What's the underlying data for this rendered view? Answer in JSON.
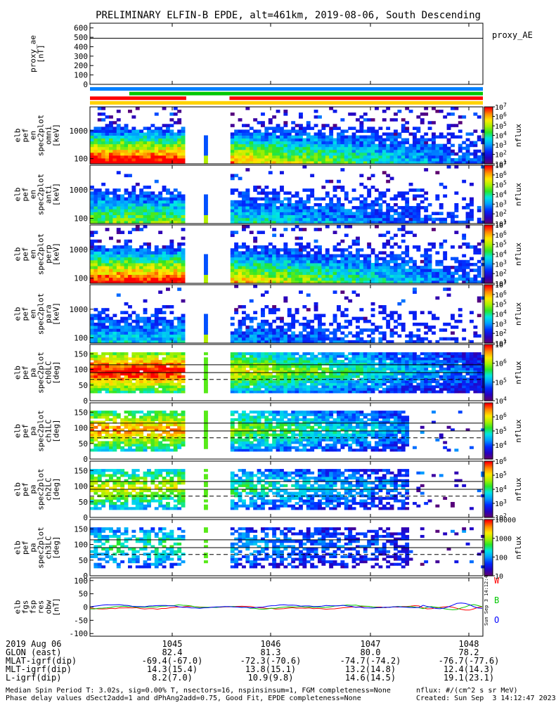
{
  "title": "PRELIMINARY ELFIN-B EPDE, alt=461km, 2019-08-06, South Descending",
  "footer": {
    "date_label": "2019 Aug 06",
    "rows": [
      {
        "label": "GLON (east)",
        "values": [
          "82.4",
          "81.3",
          "80.0",
          "78.2"
        ]
      },
      {
        "label": "MLAT-igrf(dip)",
        "values": [
          "-69.4(-67.0)",
          "-72.3(-70.6)",
          "-74.7(-74.2)",
          "-76.7(-77.6)"
        ]
      },
      {
        "label": "MLT-igrf(dip)",
        "values": [
          "14.3(15.4)",
          "13.8(15.1)",
          "13.2(14.8)",
          "12.4(14.3)"
        ]
      },
      {
        "label": "L-igrf(dip)",
        "values": [
          "8.2(7.0)",
          "10.9(9.8)",
          "14.6(14.5)",
          "19.1(23.1)"
        ]
      }
    ],
    "note1": "Median Spin Period T: 3.02s, sig=0.00% T, nsectors=16, nspinsinsum=1, FGM completeness=None",
    "note2": "Phase delay values dSect2add=1 and dPhAng2add=0.75, Good Fit, EPDE completeness=None",
    "units_note": "nflux: #/(cm^2 s sr MeV)",
    "created": "Created: Sun Sep  3 14:12:47 2023",
    "rotated_stamp": "Sun Sep  3 14:12:47 2023"
  },
  "chart_data": {
    "type": "heatmap",
    "x_axis": {
      "ticks": [
        "1045",
        "1046",
        "1047",
        "1048"
      ]
    },
    "panels": [
      {
        "id": "proxy_ae",
        "type": "line",
        "ylabel": [
          "proxy_ae",
          "[nT]"
        ],
        "yticks": [
          "600",
          "500",
          "400",
          "300",
          "200",
          "100",
          "0"
        ],
        "ylim": [
          0,
          650
        ],
        "right_label": "proxy_AE",
        "line_value": 490
      },
      {
        "id": "bars",
        "type": "status_bars",
        "bars": [
          {
            "color": "#0080ff",
            "segments": [
              [
                0,
                1
              ]
            ]
          },
          {
            "color": "#00c800",
            "segments": [
              [
                0.1,
                1
              ]
            ]
          },
          {
            "color": "#ff0000",
            "segments": [
              [
                0,
                0.245
              ],
              [
                0.355,
                1
              ]
            ]
          },
          {
            "color": "#ffd200",
            "segments": [
              [
                0,
                1
              ]
            ]
          }
        ]
      },
      {
        "id": "omni",
        "type": "heatmap",
        "ylabel": [
          "elb",
          "pef",
          "en",
          "spec2plot",
          "omni",
          "[keV]"
        ],
        "yscale": "log",
        "yticks": [
          "1000",
          "100"
        ],
        "colorbar": {
          "label": "nflux",
          "min_exp": 1,
          "max_exp": 7,
          "ticks": [
            "10^1",
            "10^2",
            "10^3",
            "10^4",
            "10^5",
            "10^6",
            "10^7"
          ]
        }
      },
      {
        "id": "anti",
        "type": "heatmap",
        "ylabel": [
          "elb",
          "pef",
          "en",
          "spec2plot",
          "anti",
          "[keV]"
        ],
        "yscale": "log",
        "yticks": [
          "1000",
          "100"
        ],
        "colorbar": {
          "label": "nflux",
          "min_exp": 1,
          "max_exp": 7,
          "ticks": [
            "10^1",
            "10^2",
            "10^3",
            "10^4",
            "10^5",
            "10^6",
            "10^7"
          ]
        }
      },
      {
        "id": "perp",
        "type": "heatmap",
        "ylabel": [
          "elb",
          "pef",
          "en",
          "spec2plot",
          "perp",
          "[keV]"
        ],
        "yscale": "log",
        "yticks": [
          "1000",
          "100"
        ],
        "colorbar": {
          "label": "nflux",
          "min_exp": 1,
          "max_exp": 7,
          "ticks": [
            "10^1",
            "10^2",
            "10^3",
            "10^4",
            "10^5",
            "10^6",
            "10^7"
          ]
        }
      },
      {
        "id": "para",
        "type": "heatmap",
        "ylabel": [
          "elb",
          "pef",
          "en",
          "spec2plot",
          "para",
          "[keV]"
        ],
        "yscale": "log",
        "yticks": [
          "1000",
          "100"
        ],
        "colorbar": {
          "label": "nflux",
          "min_exp": 1,
          "max_exp": 7,
          "ticks": [
            "10^1",
            "10^2",
            "10^3",
            "10^4",
            "10^5",
            "10^6",
            "10^7"
          ]
        }
      },
      {
        "id": "ch0LC",
        "type": "heatmap",
        "ylabel": [
          "elb",
          "pef",
          "pa",
          "spec2plot",
          "ch0LC",
          "[deg]"
        ],
        "yticks": [
          "150",
          "100",
          "50",
          "0"
        ],
        "ylim": [
          0,
          180
        ],
        "colorbar": {
          "label": "nflux",
          "min_exp": 4,
          "max_exp": 7,
          "ticks": [
            "10^4",
            "10^5",
            "10^6",
            "10^7"
          ]
        }
      },
      {
        "id": "ch1LC",
        "type": "heatmap",
        "ylabel": [
          "elb",
          "pef",
          "pa",
          "spec2plot",
          "ch1LC",
          "[deg]"
        ],
        "yticks": [
          "150",
          "100",
          "50",
          "0"
        ],
        "ylim": [
          0,
          180
        ],
        "colorbar": {
          "label": "nflux",
          "min_exp": 3,
          "max_exp": 7,
          "ticks": [
            "10^4",
            "10^5",
            "10^6"
          ]
        }
      },
      {
        "id": "ch2LC",
        "type": "heatmap",
        "ylabel": [
          "elb",
          "pef",
          "pa",
          "spec2plot",
          "ch2LC",
          "[deg]"
        ],
        "yticks": [
          "150",
          "100",
          "50",
          "0"
        ],
        "ylim": [
          0,
          180
        ],
        "colorbar": {
          "label": "nflux",
          "min_exp": 2,
          "max_exp": 6,
          "ticks": [
            "10^2",
            "10^3",
            "10^4",
            "10^5",
            "10^6"
          ]
        }
      },
      {
        "id": "ch3LC",
        "type": "heatmap",
        "ylabel": [
          "elb",
          "pef",
          "pa",
          "spec2plot",
          "ch3LC",
          "[deg]"
        ],
        "yticks": [
          "150",
          "100",
          "50",
          "0"
        ],
        "ylim": [
          0,
          180
        ],
        "colorbar": {
          "label": "nflux",
          "min_exp": 1,
          "max_exp": 4,
          "ticks": [
            "10",
            "100",
            "1000",
            "10000"
          ]
        }
      },
      {
        "id": "fgs",
        "type": "line",
        "ylabel": [
          "elb",
          "fgs",
          "fsp",
          "res",
          "obw",
          "[nT]"
        ],
        "yticks": [
          "100",
          "50",
          "0",
          "-50",
          "-100"
        ],
        "ylim": [
          -110,
          110
        ],
        "legend": [
          {
            "label": "W",
            "color": "#ff0000"
          },
          {
            "label": "B",
            "color": "#00c800"
          },
          {
            "label": "O",
            "color": "#0000ff"
          }
        ]
      }
    ]
  }
}
